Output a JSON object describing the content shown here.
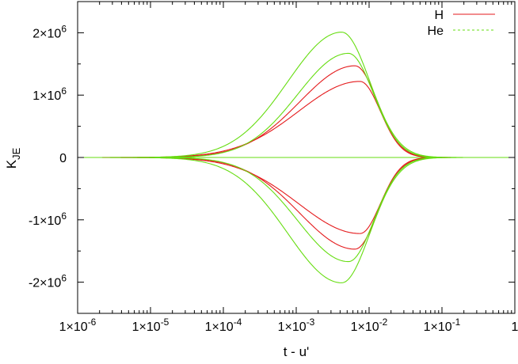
{
  "chart_data": {
    "type": "line",
    "xlabel": "t - u'",
    "ylabel": "K_JE",
    "ylabel_main": "K",
    "ylabel_sub": "JE",
    "xscale": "log",
    "xlim": [
      1e-06,
      1
    ],
    "ylim": [
      -2500000,
      2500000
    ],
    "grid": false,
    "legend_position": "top-right",
    "x_ticks": [
      {
        "value": 1e-06,
        "mantissa": "1×10",
        "exp": "-6"
      },
      {
        "value": 1e-05,
        "mantissa": "1×10",
        "exp": "-5"
      },
      {
        "value": 0.0001,
        "mantissa": "1×10",
        "exp": "-4"
      },
      {
        "value": 0.001,
        "mantissa": "1×10",
        "exp": "-3"
      },
      {
        "value": 0.01,
        "mantissa": "1×10",
        "exp": "-2"
      },
      {
        "value": 0.1,
        "mantissa": "1×10",
        "exp": "-1"
      },
      {
        "value": 1,
        "mantissa": "1",
        "exp": ""
      }
    ],
    "y_ticks": [
      {
        "value": 2000000,
        "mantissa": "2×10",
        "exp": "6"
      },
      {
        "value": 1000000,
        "mantissa": "1×10",
        "exp": "6"
      },
      {
        "value": 0,
        "mantissa": "0",
        "exp": ""
      },
      {
        "value": -1000000,
        "mantissa": "-1×10",
        "exp": "6"
      },
      {
        "value": -2000000,
        "mantissa": "-2×10",
        "exp": "6"
      }
    ],
    "legend": [
      {
        "name": "H",
        "color": "#e41a1c",
        "dash": "solid"
      },
      {
        "name": "He",
        "color": "#66dd11",
        "dash": "dashed"
      }
    ],
    "series": [
      {
        "name": "H",
        "color": "#e41a1c",
        "peak_x": 0.0075,
        "peak_y": 1220000,
        "width": 0.8
      },
      {
        "name": "H",
        "color": "#e41a1c",
        "peak_x": 0.0064,
        "peak_y": 1470000,
        "width": 0.72
      },
      {
        "name": "H",
        "color": "#e41a1c",
        "peak_x": 0.0075,
        "peak_y": -1220000,
        "width": 0.8
      },
      {
        "name": "H",
        "color": "#e41a1c",
        "peak_x": 0.0064,
        "peak_y": -1470000,
        "width": 0.72
      },
      {
        "name": "He",
        "color": "#66dd11",
        "peak_x": 0.0052,
        "peak_y": 1670000,
        "width": 0.66
      },
      {
        "name": "He",
        "color": "#66dd11",
        "peak_x": 0.0042,
        "peak_y": 2010000,
        "width": 0.7
      },
      {
        "name": "He",
        "color": "#66dd11",
        "peak_x": 0.0052,
        "peak_y": -1670000,
        "width": 0.66
      },
      {
        "name": "He",
        "color": "#66dd11",
        "peak_x": 0.0042,
        "peak_y": -2010000,
        "width": 0.7
      },
      {
        "name": "He",
        "color": "#66dd11",
        "peak_x": 0.001,
        "peak_y": 0,
        "width": 1.0
      }
    ]
  }
}
